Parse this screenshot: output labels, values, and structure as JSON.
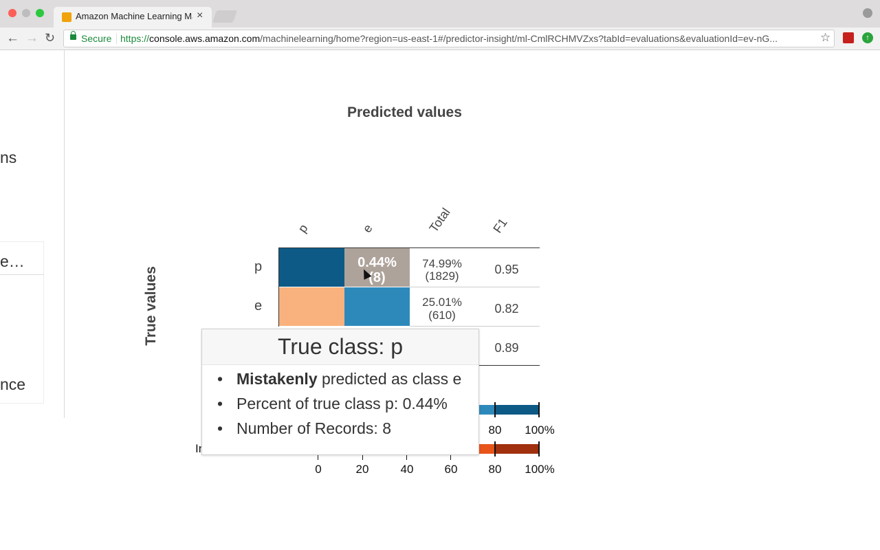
{
  "browser": {
    "tab_title": "Amazon Machine Learning Ma",
    "secure_label": "Secure",
    "url_scheme": "https://",
    "url_domain": "console.aws.amazon.com",
    "url_path": "/machinelearning/home?region=us-east-1#/predictor-insight/ml-CmlRCHMVZxs?tabId=evaluations&evaluationId=ev-nG..."
  },
  "left_panel": {
    "line1": "ns",
    "line2": "e…",
    "line3": "nce"
  },
  "matrix": {
    "predicted_title": "Predicted values",
    "true_title": "True values",
    "col_headers": [
      "p",
      "e",
      "Total",
      "F1"
    ],
    "row_labels": [
      "p",
      "e"
    ],
    "cell_pe": {
      "pct": "0.44%",
      "count": "(8)"
    },
    "totals": [
      {
        "pct": "74.99%",
        "count": "(1829)"
      },
      {
        "pct": "25.01%",
        "count": "(610)"
      }
    ],
    "f1": [
      "0.95",
      "0.82",
      "0.89"
    ],
    "colors": {
      "pp": "#0e5a87",
      "pe_hover": "#aea39b",
      "ep": "#f9b27d",
      "ee": "#2e89bb"
    }
  },
  "tooltip": {
    "title": "True class: p",
    "bold_word": "Mistakenly",
    "item1_rest": " predicted as class e",
    "item2": "Percent of true class p: 0.44%",
    "item3": "Number of Records: 8"
  },
  "axis": {
    "upper_ticks": [
      "80",
      "100%"
    ],
    "lower_ticks": [
      "0",
      "20",
      "40",
      "60",
      "80",
      "100%"
    ],
    "lower_label_partial": "In"
  },
  "bars": {
    "blue_light": "#2e89bb",
    "blue_dark": "#0e5a87",
    "orange_light": "#e8541a",
    "orange_dark": "#a0300e"
  }
}
